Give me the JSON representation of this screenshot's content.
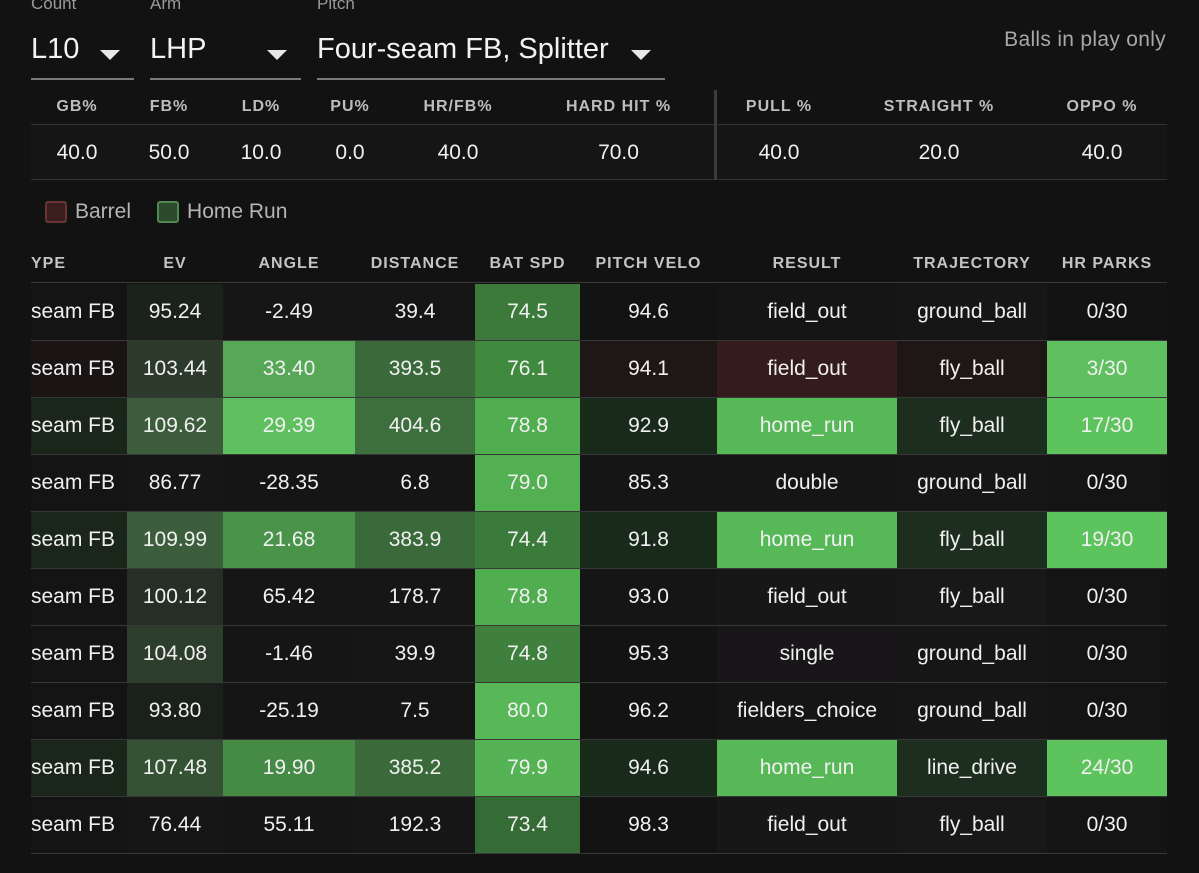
{
  "filters": [
    {
      "label": "Count",
      "value": "L10"
    },
    {
      "label": "Arm",
      "value": "LHP"
    },
    {
      "label": "Pitch",
      "value": "Four-seam FB, Splitter"
    }
  ],
  "balls_in_play_only": "Balls in play only",
  "summary": {
    "headers": [
      "GB%",
      "FB%",
      "LD%",
      "PU%",
      "HR/FB%",
      "HARD HIT %",
      "PULL %",
      "STRAIGHT %",
      "OPPO %"
    ],
    "values": [
      "40.0",
      "50.0",
      "10.0",
      "0.0",
      "40.0",
      "70.0",
      "40.0",
      "20.0",
      "40.0"
    ]
  },
  "legend": [
    {
      "label": "Barrel",
      "color": "#3a1d1d",
      "border": "#6b3434"
    },
    {
      "label": "Home Run",
      "color": "#2c4a2c",
      "border": "#4e8a4e"
    }
  ],
  "table": {
    "headers": [
      "YPE",
      "EV",
      "ANGLE",
      "DISTANCE",
      "BAT SPD",
      "PITCH VELO",
      "RESULT",
      "TRAJECTORY",
      "HR PARKS"
    ],
    "rows": [
      {
        "cells": [
          "seam FB",
          "95.24",
          "-2.49",
          "39.4",
          "74.5",
          "94.6",
          "field_out",
          "ground_ball",
          "0/30"
        ],
        "colors": [
          "#141414",
          "#1b221b",
          "#161616",
          "#161616",
          "#3b7a3b",
          "#131313",
          "#151515",
          "#161616",
          "#131313"
        ]
      },
      {
        "cells": [
          "seam FB",
          "103.44",
          "33.40",
          "393.5",
          "76.1",
          "94.1",
          "field_out",
          "fly_ball",
          "3/30"
        ],
        "colors": [
          "#1a1414",
          "#2b3a2b",
          "#56a856",
          "#3a6a3a",
          "#3f8a3f",
          "#1f1616",
          "#351c1c",
          "#1f1616",
          "#5ec05e"
        ]
      },
      {
        "cells": [
          "seam FB",
          "109.62",
          "29.39",
          "404.6",
          "78.8",
          "92.9",
          "home_run",
          "fly_ball",
          "17/30"
        ],
        "colors": [
          "#1b261b",
          "#3c5c3c",
          "#5fc05f",
          "#3d6f3d",
          "#50ae50",
          "#1a2a1a",
          "#56b856",
          "#1e2e1e",
          "#5dc35d"
        ]
      },
      {
        "cells": [
          "seam FB",
          "86.77",
          "-28.35",
          "6.8",
          "79.0",
          "85.3",
          "double",
          "ground_ball",
          "0/30"
        ],
        "colors": [
          "#141414",
          "#161616",
          "#151515",
          "#151515",
          "#52b052",
          "#151515",
          "#151515",
          "#161616",
          "#141414"
        ]
      },
      {
        "cells": [
          "seam FB",
          "109.99",
          "21.68",
          "383.9",
          "74.4",
          "91.8",
          "home_run",
          "fly_ball",
          "19/30"
        ],
        "colors": [
          "#1b261b",
          "#3d5e3d",
          "#4a944a",
          "#3a6a3a",
          "#3a7a3a",
          "#1a2a1a",
          "#56b856",
          "#1e2e1e",
          "#5dc35d"
        ]
      },
      {
        "cells": [
          "seam FB",
          "100.12",
          "65.42",
          "178.7",
          "78.8",
          "93.0",
          "field_out",
          "fly_ball",
          "0/30"
        ],
        "colors": [
          "#141414",
          "#262f26",
          "#161616",
          "#161616",
          "#50ae50",
          "#151515",
          "#171717",
          "#181818",
          "#141414"
        ]
      },
      {
        "cells": [
          "seam FB",
          "104.08",
          "-1.46",
          "39.9",
          "74.8",
          "95.3",
          "single",
          "ground_ball",
          "0/30"
        ],
        "colors": [
          "#141414",
          "#2d3e2d",
          "#151515",
          "#161616",
          "#3f803f",
          "#131313",
          "#181618",
          "#161616",
          "#141414"
        ]
      },
      {
        "cells": [
          "seam FB",
          "93.80",
          "-25.19",
          "7.5",
          "80.0",
          "96.2",
          "fielders_choice",
          "ground_ball",
          "0/30"
        ],
        "colors": [
          "#141414",
          "#1a201a",
          "#151515",
          "#151515",
          "#58b858",
          "#131313",
          "#151515",
          "#161616",
          "#141414"
        ]
      },
      {
        "cells": [
          "seam FB",
          "107.48",
          "19.90",
          "385.2",
          "79.9",
          "94.6",
          "home_run",
          "line_drive",
          "24/30"
        ],
        "colors": [
          "#1b261b",
          "#355235",
          "#458a45",
          "#3a6a3a",
          "#55b355",
          "#1a2a1a",
          "#56b856",
          "#1e2e1e",
          "#5dc35d"
        ]
      },
      {
        "cells": [
          "seam FB",
          "76.44",
          "55.11",
          "192.3",
          "73.4",
          "98.3",
          "field_out",
          "fly_ball",
          "0/30"
        ],
        "colors": [
          "#141414",
          "#161616",
          "#151515",
          "#161616",
          "#356b35",
          "#131313",
          "#171717",
          "#181818",
          "#141414"
        ]
      }
    ]
  }
}
